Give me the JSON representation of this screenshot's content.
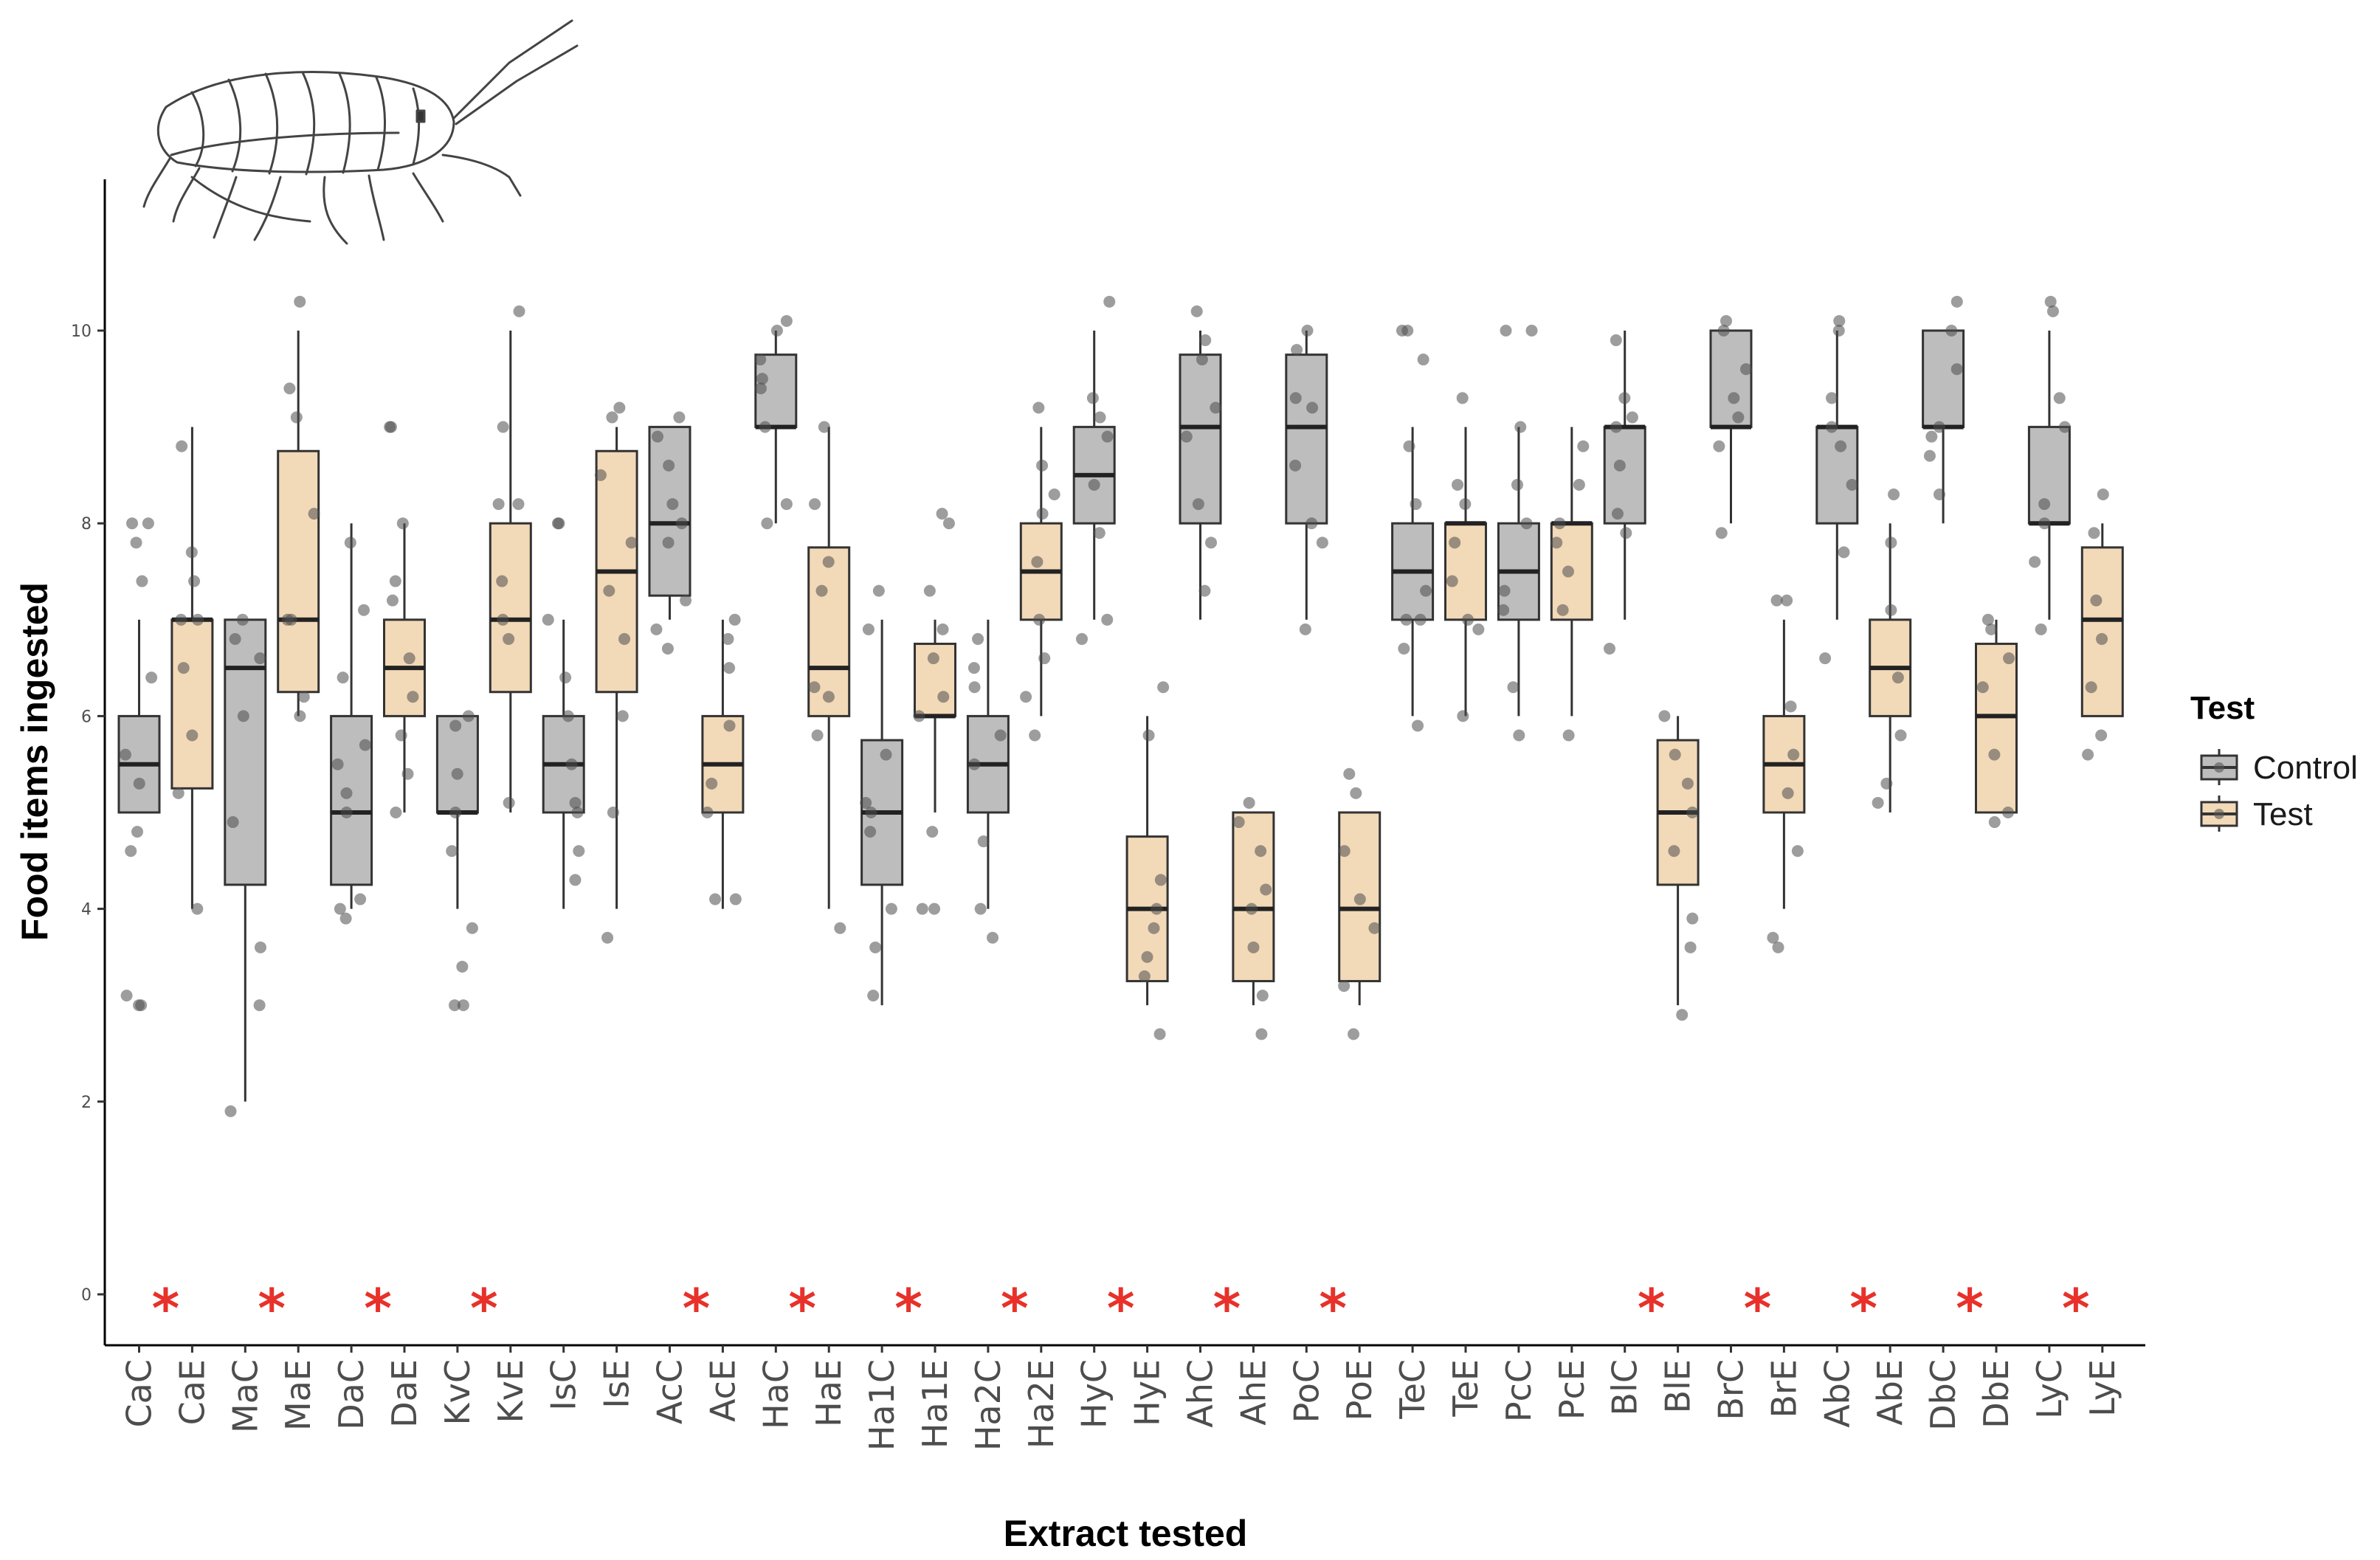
{
  "chart_data": {
    "type": "boxplot",
    "xlabel": "Extract tested",
    "ylabel": "Food items ingested",
    "ylim": [
      -0.5,
      11.5
    ],
    "yticks": [
      0,
      2,
      4,
      6,
      8,
      10
    ],
    "legend": {
      "title": "Test",
      "position": "right",
      "entries": [
        {
          "label": "Control",
          "color": "#bdbdbd"
        },
        {
          "label": "Test",
          "color": "#f2d9b8"
        }
      ]
    },
    "significance_marker": "*",
    "categories": [
      {
        "label": "CaC",
        "group": "Control",
        "q1": 5,
        "median": 5.5,
        "q3": 6,
        "lo": 5,
        "hi": 7,
        "sig": true,
        "points": [
          3,
          3,
          3.1,
          4.6,
          4.8,
          5.3,
          5.6,
          6.4,
          7.4,
          7.8,
          8,
          8
        ]
      },
      {
        "label": "CaE",
        "group": "Test",
        "q1": 5.25,
        "median": 7,
        "q3": 7,
        "lo": 4,
        "hi": 9,
        "sig": false,
        "points": [
          4,
          5.2,
          5.8,
          6.5,
          7,
          7,
          7.4,
          7.7,
          8.8
        ]
      },
      {
        "label": "MaC",
        "group": "Control",
        "q1": 4.25,
        "median": 6.5,
        "q3": 7,
        "lo": 2,
        "hi": 7,
        "sig": true,
        "points": [
          1.9,
          3,
          3.6,
          4.9,
          6,
          6.6,
          6.8,
          7
        ]
      },
      {
        "label": "MaE",
        "group": "Test",
        "q1": 6.25,
        "median": 7,
        "q3": 8.75,
        "lo": 6,
        "hi": 10,
        "sig": false,
        "points": [
          6,
          6.2,
          7,
          7,
          8.1,
          9.1,
          9.4,
          10.3
        ]
      },
      {
        "label": "DaC",
        "group": "Control",
        "q1": 4.25,
        "median": 5,
        "q3": 6,
        "lo": 4,
        "hi": 8,
        "sig": true,
        "points": [
          3.9,
          4,
          4.1,
          5,
          5.2,
          5.5,
          5.7,
          6.4,
          7.1,
          7.8
        ]
      },
      {
        "label": "DaE",
        "group": "Test",
        "q1": 6,
        "median": 6.5,
        "q3": 7,
        "lo": 5,
        "hi": 8,
        "sig": false,
        "points": [
          5,
          5.4,
          5.8,
          6.2,
          6.6,
          7.2,
          7.4,
          8,
          9,
          9
        ]
      },
      {
        "label": "KvC",
        "group": "Control",
        "q1": 5,
        "median": 5,
        "q3": 6,
        "lo": 4,
        "hi": 6,
        "sig": true,
        "points": [
          3,
          3,
          3.4,
          3.8,
          4.6,
          5,
          5.4,
          5.9,
          6
        ]
      },
      {
        "label": "KvE",
        "group": "Test",
        "q1": 6.25,
        "median": 7,
        "q3": 8,
        "lo": 5,
        "hi": 10,
        "sig": false,
        "points": [
          5.1,
          6.8,
          7,
          7.4,
          8.2,
          8.2,
          9,
          10.2
        ]
      },
      {
        "label": "IsC",
        "group": "Control",
        "q1": 5,
        "median": 5.5,
        "q3": 6,
        "lo": 4,
        "hi": 7,
        "sig": false,
        "points": [
          4.3,
          4.6,
          5,
          5.1,
          5.5,
          6,
          6.4,
          7,
          8,
          8
        ]
      },
      {
        "label": "IsE",
        "group": "Test",
        "q1": 6.25,
        "median": 7.5,
        "q3": 8.75,
        "lo": 4,
        "hi": 9,
        "sig": false,
        "points": [
          3.7,
          5,
          6,
          6.8,
          7.3,
          7.8,
          8.5,
          9.1,
          9.2
        ]
      },
      {
        "label": "AcC",
        "group": "Control",
        "q1": 7.25,
        "median": 8,
        "q3": 9,
        "lo": 7,
        "hi": 9,
        "sig": true,
        "points": [
          6.7,
          6.9,
          7.2,
          7.8,
          8,
          8.2,
          8.6,
          8.9,
          9.1
        ]
      },
      {
        "label": "AcE",
        "group": "Test",
        "q1": 5,
        "median": 5.5,
        "q3": 6,
        "lo": 4,
        "hi": 7,
        "sig": false,
        "points": [
          4.1,
          4.1,
          5,
          5.3,
          5.9,
          6.5,
          6.8,
          7
        ]
      },
      {
        "label": "HaC",
        "group": "Control",
        "q1": 9,
        "median": 9,
        "q3": 9.75,
        "lo": 8,
        "hi": 10,
        "sig": true,
        "points": [
          8,
          8.2,
          9,
          9.4,
          9.5,
          9.7,
          10,
          10.1
        ]
      },
      {
        "label": "HaE",
        "group": "Test",
        "q1": 6,
        "median": 6.5,
        "q3": 7.75,
        "lo": 4,
        "hi": 9,
        "sig": false,
        "points": [
          3.8,
          5.8,
          6.2,
          6.3,
          7.3,
          7.6,
          8.2,
          9
        ]
      },
      {
        "label": "Ha1C",
        "group": "Control",
        "q1": 4.25,
        "median": 5,
        "q3": 5.75,
        "lo": 3,
        "hi": 7,
        "sig": true,
        "points": [
          3.1,
          3.6,
          4,
          4.8,
          5,
          5.1,
          5.6,
          6.9,
          7.3
        ]
      },
      {
        "label": "Ha1E",
        "group": "Test",
        "q1": 6,
        "median": 6,
        "q3": 6.75,
        "lo": 5,
        "hi": 7,
        "sig": false,
        "points": [
          4,
          4,
          4.8,
          6,
          6.2,
          6.6,
          6.9,
          7.3,
          8,
          8.1
        ]
      },
      {
        "label": "Ha2C",
        "group": "Control",
        "q1": 5,
        "median": 5.5,
        "q3": 6,
        "lo": 4,
        "hi": 7,
        "sig": true,
        "points": [
          3.7,
          4,
          4.7,
          5.5,
          5.8,
          6.3,
          6.5,
          6.8
        ]
      },
      {
        "label": "Ha2E",
        "group": "Test",
        "q1": 7,
        "median": 7.5,
        "q3": 8,
        "lo": 6,
        "hi": 9,
        "sig": false,
        "points": [
          5.8,
          6.2,
          6.6,
          7,
          7.6,
          8.1,
          8.3,
          8.6,
          9.2
        ]
      },
      {
        "label": "HyC",
        "group": "Control",
        "q1": 8,
        "median": 8.5,
        "q3": 9,
        "lo": 7,
        "hi": 10,
        "sig": true,
        "points": [
          6.8,
          7,
          7.9,
          8.4,
          8.9,
          9.1,
          9.3,
          10.3
        ]
      },
      {
        "label": "HyE",
        "group": "Test",
        "q1": 3.25,
        "median": 4,
        "q3": 4.75,
        "lo": 3,
        "hi": 6,
        "sig": false,
        "points": [
          2.7,
          3.3,
          3.5,
          3.8,
          4,
          4.3,
          5.8,
          6.3
        ]
      },
      {
        "label": "AhC",
        "group": "Control",
        "q1": 8,
        "median": 9,
        "q3": 9.75,
        "lo": 7,
        "hi": 10,
        "sig": true,
        "points": [
          7.3,
          7.8,
          8.2,
          8.9,
          9.2,
          9.7,
          9.9,
          10.2
        ]
      },
      {
        "label": "AhE",
        "group": "Test",
        "q1": 3.25,
        "median": 4,
        "q3": 5,
        "lo": 3,
        "hi": 5,
        "sig": false,
        "points": [
          2.7,
          3.1,
          3.6,
          4,
          4.2,
          4.6,
          4.9,
          5.1
        ]
      },
      {
        "label": "PoC",
        "group": "Control",
        "q1": 8,
        "median": 9,
        "q3": 9.75,
        "lo": 7,
        "hi": 10,
        "sig": true,
        "points": [
          6.9,
          7.8,
          8,
          8.6,
          9.2,
          9.3,
          9.8,
          10
        ]
      },
      {
        "label": "PoE",
        "group": "Test",
        "q1": 3.25,
        "median": 4,
        "q3": 5,
        "lo": 3,
        "hi": 5,
        "sig": false,
        "points": [
          2.7,
          3.2,
          3.8,
          4.1,
          4.6,
          5.2,
          5.4
        ]
      },
      {
        "label": "TeC",
        "group": "Control",
        "q1": 7,
        "median": 7.5,
        "q3": 8,
        "lo": 6,
        "hi": 9,
        "sig": false,
        "points": [
          5.9,
          6.7,
          7,
          7,
          7.3,
          8.2,
          8.8,
          9.7,
          10,
          10
        ]
      },
      {
        "label": "TeE",
        "group": "Test",
        "q1": 7,
        "median": 8,
        "q3": 8,
        "lo": 6,
        "hi": 9,
        "sig": false,
        "points": [
          6,
          6.9,
          7,
          7.4,
          7.8,
          8.2,
          8.4,
          9.3
        ]
      },
      {
        "label": "PcC",
        "group": "Control",
        "q1": 7,
        "median": 7.5,
        "q3": 8,
        "lo": 6,
        "hi": 9,
        "sig": false,
        "points": [
          5.8,
          6.3,
          7.1,
          7.3,
          8,
          8.4,
          9,
          10,
          10
        ]
      },
      {
        "label": "PcE",
        "group": "Test",
        "q1": 7,
        "median": 8,
        "q3": 8,
        "lo": 6,
        "hi": 9,
        "sig": false,
        "points": [
          5.8,
          7.1,
          7.5,
          7.8,
          8,
          8.4,
          8.8
        ]
      },
      {
        "label": "BlC",
        "group": "Control",
        "q1": 8,
        "median": 9,
        "q3": 9,
        "lo": 7,
        "hi": 10,
        "sig": true,
        "points": [
          6.7,
          7.9,
          8.1,
          8.6,
          9,
          9.1,
          9.3,
          9.9
        ]
      },
      {
        "label": "BlE",
        "group": "Test",
        "q1": 4.25,
        "median": 5,
        "q3": 5.75,
        "lo": 3,
        "hi": 6,
        "sig": false,
        "points": [
          2.9,
          3.6,
          3.9,
          4.6,
          5,
          5.3,
          5.6,
          6
        ]
      },
      {
        "label": "BrC",
        "group": "Control",
        "q1": 9,
        "median": 9,
        "q3": 10,
        "lo": 8,
        "hi": 10,
        "sig": true,
        "points": [
          7.9,
          8.8,
          9.1,
          9.3,
          9.6,
          10,
          10.1
        ]
      },
      {
        "label": "BrE",
        "group": "Test",
        "q1": 5,
        "median": 5.5,
        "q3": 6,
        "lo": 4,
        "hi": 7,
        "sig": false,
        "points": [
          3.6,
          3.7,
          4.6,
          5.2,
          5.6,
          6.1,
          7.2,
          7.2
        ]
      },
      {
        "label": "AbC",
        "group": "Control",
        "q1": 8,
        "median": 9,
        "q3": 9,
        "lo": 7,
        "hi": 10,
        "sig": true,
        "points": [
          6.6,
          7.7,
          8.4,
          8.8,
          9,
          9.3,
          10,
          10.1
        ]
      },
      {
        "label": "AbE",
        "group": "Test",
        "q1": 6,
        "median": 6.5,
        "q3": 7,
        "lo": 5,
        "hi": 8,
        "sig": false,
        "points": [
          5.1,
          5.3,
          5.8,
          6.4,
          7.1,
          7.8,
          8.3
        ]
      },
      {
        "label": "DbC",
        "group": "Control",
        "q1": 9,
        "median": 9,
        "q3": 10,
        "lo": 8,
        "hi": 10,
        "sig": true,
        "points": [
          8.3,
          8.7,
          8.9,
          9,
          9.6,
          10,
          10.3
        ]
      },
      {
        "label": "DbE",
        "group": "Test",
        "q1": 5,
        "median": 6,
        "q3": 6.75,
        "lo": 5,
        "hi": 7,
        "sig": false,
        "points": [
          4.9,
          5,
          5.6,
          6.3,
          6.6,
          6.9,
          7
        ]
      },
      {
        "label": "LyC",
        "group": "Control",
        "q1": 8,
        "median": 8,
        "q3": 9,
        "lo": 7,
        "hi": 10,
        "sig": true,
        "points": [
          6.9,
          7.6,
          8,
          8.2,
          9,
          9.3,
          10.2,
          10.3
        ]
      },
      {
        "label": "LyE",
        "group": "Test",
        "q1": 6,
        "median": 7,
        "q3": 7.75,
        "lo": 6,
        "hi": 8,
        "sig": false,
        "points": [
          5.6,
          5.8,
          6.3,
          6.8,
          7.2,
          7.9,
          8.3
        ]
      }
    ]
  }
}
